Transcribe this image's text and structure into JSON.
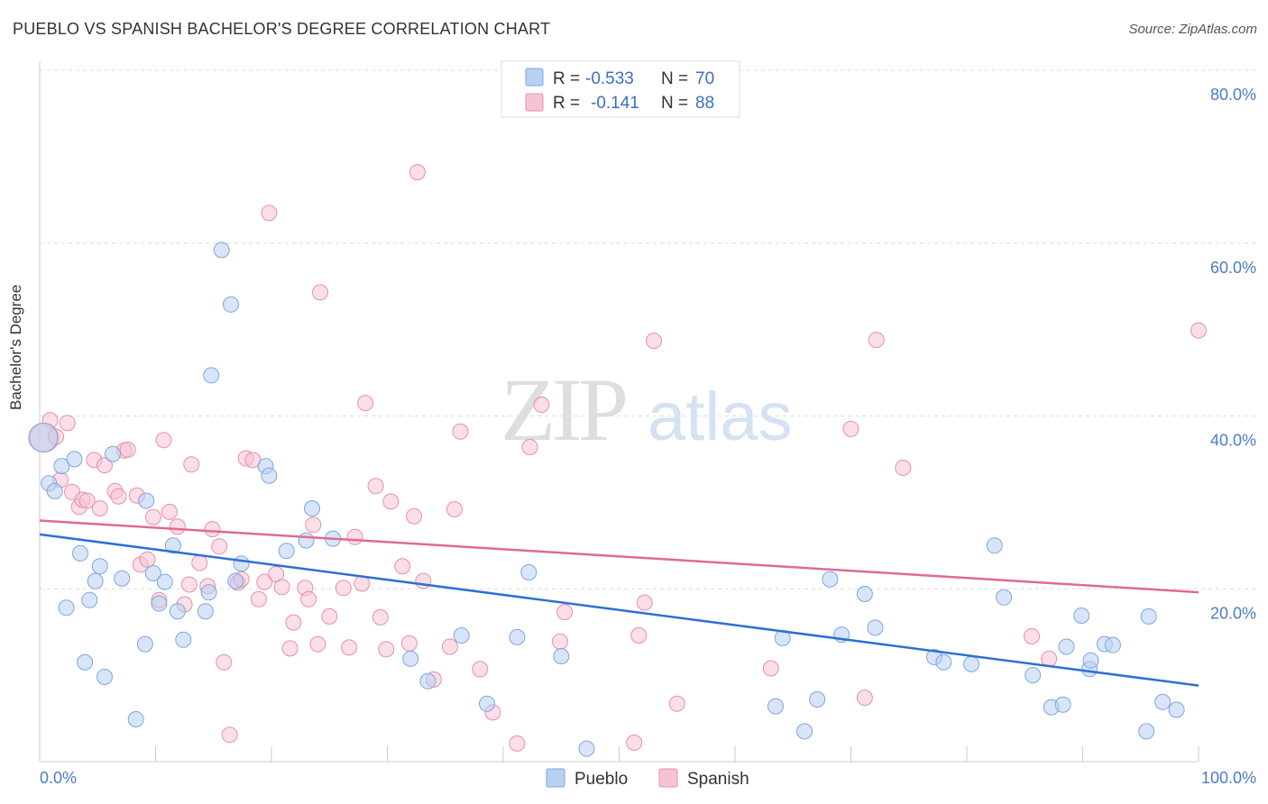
{
  "title": "PUEBLO VS SPANISH BACHELOR'S DEGREE CORRELATION CHART",
  "source": "Source: ZipAtlas.com",
  "watermark": {
    "zip": "ZIP",
    "atlas": "atlas"
  },
  "colors": {
    "pueblo_fill": "#b8d0f2",
    "pueblo_stroke": "#7ea6dd",
    "pueblo_line": "#2f6fd4",
    "spanish_fill": "#f7c3d3",
    "spanish_stroke": "#e690ad",
    "spanish_line": "#e06a92",
    "grid": "#dddddd",
    "axis_text": "#4a7cc7"
  },
  "legend": {
    "rows": [
      {
        "r_label": "R =",
        "r_value": "-0.533",
        "n_label": "N =",
        "n_value": "70",
        "series": "pueblo"
      },
      {
        "r_label": "R =",
        "r_value": "-0.141",
        "n_label": "N =",
        "n_value": "88",
        "series": "spanish"
      }
    ]
  },
  "bottom_legend": {
    "pueblo": "Pueblo",
    "spanish": "Spanish"
  },
  "chart_data": {
    "type": "scatter",
    "title": "PUEBLO VS SPANISH BACHELOR'S DEGREE CORRELATION CHART",
    "xlabel": "",
    "ylabel": "Bachelor's Degree",
    "xlim": [
      0,
      100
    ],
    "ylim": [
      0,
      80
    ],
    "x_tick_labels": {
      "left": "0.0%",
      "right": "100.0%"
    },
    "y_ticks": [
      {
        "value": 20,
        "label": "20.0%"
      },
      {
        "value": 40,
        "label": "40.0%"
      },
      {
        "value": 60,
        "label": "60.0%"
      },
      {
        "value": 80,
        "label": "80.0%"
      }
    ],
    "series": [
      {
        "name": "Pueblo",
        "r": -0.533,
        "n": 70,
        "trend": {
          "x0": 0,
          "y0": 26.3,
          "x1": 100,
          "y1": 8.8
        },
        "points": [
          [
            0.3,
            37.5
          ],
          [
            0.8,
            32.2
          ],
          [
            1.3,
            31.3
          ],
          [
            1.9,
            34.2
          ],
          [
            2.3,
            17.8
          ],
          [
            3.0,
            35.0
          ],
          [
            3.5,
            24.1
          ],
          [
            3.9,
            11.5
          ],
          [
            4.3,
            18.7
          ],
          [
            4.8,
            20.9
          ],
          [
            5.2,
            22.6
          ],
          [
            5.6,
            9.8
          ],
          [
            6.3,
            35.6
          ],
          [
            7.1,
            21.2
          ],
          [
            8.3,
            4.9
          ],
          [
            9.1,
            13.6
          ],
          [
            9.2,
            30.2
          ],
          [
            9.8,
            21.8
          ],
          [
            10.3,
            18.3
          ],
          [
            10.8,
            20.8
          ],
          [
            11.5,
            25.0
          ],
          [
            11.9,
            17.4
          ],
          [
            12.4,
            14.1
          ],
          [
            14.3,
            17.4
          ],
          [
            14.6,
            19.6
          ],
          [
            14.8,
            44.7
          ],
          [
            15.7,
            59.2
          ],
          [
            16.5,
            52.9
          ],
          [
            16.9,
            20.9
          ],
          [
            17.4,
            22.9
          ],
          [
            19.5,
            34.2
          ],
          [
            19.8,
            33.1
          ],
          [
            21.3,
            24.4
          ],
          [
            23.0,
            25.6
          ],
          [
            23.5,
            29.3
          ],
          [
            25.3,
            25.8
          ],
          [
            32.0,
            11.9
          ],
          [
            33.5,
            9.3
          ],
          [
            36.4,
            14.6
          ],
          [
            38.6,
            6.7
          ],
          [
            41.2,
            14.4
          ],
          [
            42.2,
            21.9
          ],
          [
            45.0,
            12.2
          ],
          [
            47.2,
            1.5
          ],
          [
            63.5,
            6.4
          ],
          [
            64.1,
            14.3
          ],
          [
            66.0,
            3.5
          ],
          [
            67.1,
            7.2
          ],
          [
            68.2,
            21.1
          ],
          [
            69.2,
            14.7
          ],
          [
            71.2,
            19.4
          ],
          [
            72.1,
            15.5
          ],
          [
            77.2,
            12.1
          ],
          [
            78.0,
            11.5
          ],
          [
            80.4,
            11.3
          ],
          [
            82.4,
            25.0
          ],
          [
            83.2,
            19.0
          ],
          [
            85.7,
            10.0
          ],
          [
            87.3,
            6.3
          ],
          [
            88.3,
            6.6
          ],
          [
            88.6,
            13.3
          ],
          [
            89.9,
            16.9
          ],
          [
            90.6,
            10.7
          ],
          [
            90.7,
            11.7
          ],
          [
            91.9,
            13.6
          ],
          [
            92.6,
            13.5
          ],
          [
            95.5,
            3.5
          ],
          [
            95.7,
            16.8
          ],
          [
            96.9,
            6.9
          ],
          [
            98.1,
            6.0
          ]
        ]
      },
      {
        "name": "Spanish",
        "r": -0.141,
        "n": 88,
        "trend": {
          "x0": 0,
          "y0": 27.9,
          "x1": 100,
          "y1": 19.6
        },
        "points": [
          [
            0.4,
            37.5
          ],
          [
            0.9,
            39.5
          ],
          [
            1.4,
            37.6
          ],
          [
            1.8,
            32.6
          ],
          [
            2.4,
            39.2
          ],
          [
            2.8,
            31.2
          ],
          [
            3.4,
            29.5
          ],
          [
            3.7,
            30.3
          ],
          [
            4.1,
            30.2
          ],
          [
            4.7,
            34.9
          ],
          [
            5.2,
            29.3
          ],
          [
            5.6,
            34.3
          ],
          [
            6.5,
            31.3
          ],
          [
            6.8,
            30.7
          ],
          [
            7.3,
            36.0
          ],
          [
            7.6,
            36.1
          ],
          [
            8.4,
            30.8
          ],
          [
            8.7,
            22.8
          ],
          [
            9.3,
            23.4
          ],
          [
            9.8,
            28.3
          ],
          [
            10.3,
            18.7
          ],
          [
            10.7,
            37.2
          ],
          [
            11.2,
            28.9
          ],
          [
            11.9,
            27.2
          ],
          [
            12.5,
            18.2
          ],
          [
            12.9,
            20.5
          ],
          [
            13.1,
            34.4
          ],
          [
            13.8,
            23.0
          ],
          [
            14.5,
            20.3
          ],
          [
            14.9,
            26.9
          ],
          [
            15.5,
            24.9
          ],
          [
            15.9,
            11.5
          ],
          [
            16.4,
            3.1
          ],
          [
            17.1,
            20.7
          ],
          [
            17.4,
            21.1
          ],
          [
            17.8,
            35.1
          ],
          [
            18.4,
            34.9
          ],
          [
            18.9,
            18.8
          ],
          [
            19.4,
            20.8
          ],
          [
            19.8,
            63.5
          ],
          [
            20.4,
            21.7
          ],
          [
            20.9,
            20.2
          ],
          [
            21.6,
            13.1
          ],
          [
            21.9,
            16.1
          ],
          [
            22.9,
            20.1
          ],
          [
            23.2,
            18.8
          ],
          [
            23.6,
            27.4
          ],
          [
            24.0,
            13.6
          ],
          [
            24.2,
            54.3
          ],
          [
            25.0,
            16.8
          ],
          [
            26.2,
            20.1
          ],
          [
            26.7,
            13.2
          ],
          [
            27.2,
            26.0
          ],
          [
            27.8,
            20.6
          ],
          [
            28.1,
            41.5
          ],
          [
            29.0,
            31.9
          ],
          [
            29.4,
            16.7
          ],
          [
            29.9,
            13.0
          ],
          [
            30.3,
            30.1
          ],
          [
            31.3,
            22.6
          ],
          [
            31.9,
            13.7
          ],
          [
            32.3,
            28.4
          ],
          [
            32.6,
            68.2
          ],
          [
            33.1,
            20.9
          ],
          [
            34.0,
            9.5
          ],
          [
            35.4,
            13.3
          ],
          [
            35.8,
            29.2
          ],
          [
            36.3,
            38.2
          ],
          [
            38.0,
            10.7
          ],
          [
            39.1,
            5.7
          ],
          [
            41.2,
            2.1
          ],
          [
            42.3,
            36.4
          ],
          [
            43.3,
            41.3
          ],
          [
            44.9,
            13.9
          ],
          [
            45.3,
            17.3
          ],
          [
            51.3,
            2.2
          ],
          [
            51.7,
            14.6
          ],
          [
            52.2,
            18.4
          ],
          [
            53.0,
            48.7
          ],
          [
            55.0,
            6.7
          ],
          [
            63.1,
            10.8
          ],
          [
            70.0,
            38.5
          ],
          [
            71.2,
            7.4
          ],
          [
            72.2,
            48.8
          ],
          [
            74.5,
            34.0
          ],
          [
            85.6,
            14.5
          ],
          [
            87.1,
            11.9
          ],
          [
            100.0,
            49.9
          ]
        ]
      }
    ]
  }
}
